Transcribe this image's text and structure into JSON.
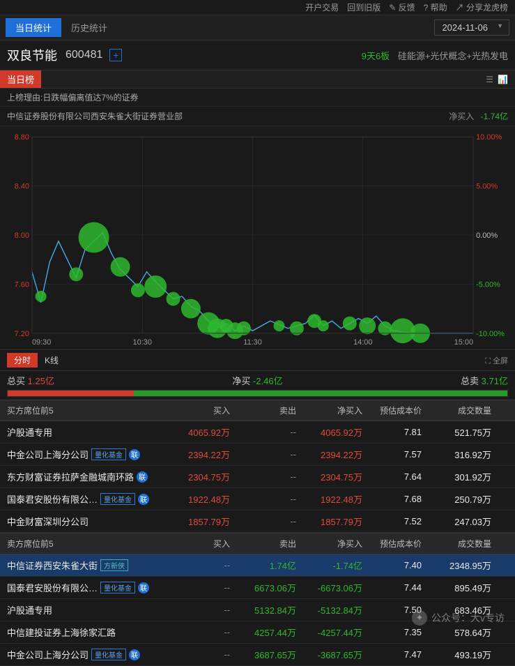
{
  "topLinks": [
    "开户交易",
    "回到旧版",
    "✎ 反馈",
    "? 帮助",
    "↗ 分享龙虎榜"
  ],
  "tabs": {
    "today": "当日统计",
    "history": "历史统计"
  },
  "date": "2024-11-06",
  "stock": {
    "name": "双良节能",
    "code": "600481",
    "plus": "+",
    "days": "9天6板",
    "concepts": "硅能源+光伏概念+光热发电"
  },
  "todayBadge": "当日榜",
  "reason": "上榜理由:日跌幅偏离值达7%的证券",
  "broker": {
    "name": "中信证券股份有限公司西安朱雀大街证券营业部",
    "netLabel": "净买入",
    "netVal": "-1.74亿"
  },
  "chart": {
    "leftTicks": [
      "8.80",
      "8.40",
      "8.00",
      "7.60",
      "7.20"
    ],
    "rightTicks": [
      "10.00%",
      "5.00%",
      "0.00%",
      "-5.00%",
      "-10.00%"
    ],
    "xTicks": [
      "09:30",
      "10:30",
      "11:30",
      "14:00",
      "15:00"
    ],
    "line": [
      [
        0,
        7.7
      ],
      [
        2,
        7.45
      ],
      [
        4,
        7.78
      ],
      [
        6,
        7.95
      ],
      [
        8,
        7.8
      ],
      [
        10,
        7.65
      ],
      [
        12,
        7.88
      ],
      [
        14,
        7.95
      ],
      [
        16,
        8.02
      ],
      [
        18,
        7.85
      ],
      [
        20,
        7.72
      ],
      [
        22,
        7.65
      ],
      [
        24,
        7.58
      ],
      [
        26,
        7.7
      ],
      [
        28,
        7.62
      ],
      [
        30,
        7.55
      ],
      [
        32,
        7.48
      ],
      [
        34,
        7.5
      ],
      [
        36,
        7.42
      ],
      [
        38,
        7.38
      ],
      [
        40,
        7.3
      ],
      [
        42,
        7.24
      ],
      [
        44,
        7.28
      ],
      [
        46,
        7.22
      ],
      [
        48,
        7.26
      ],
      [
        50,
        7.22
      ],
      [
        54,
        7.3
      ],
      [
        58,
        7.24
      ],
      [
        62,
        7.28
      ],
      [
        64,
        7.35
      ],
      [
        66,
        7.26
      ],
      [
        68,
        7.3
      ],
      [
        70,
        7.24
      ],
      [
        74,
        7.32
      ],
      [
        76,
        7.28
      ],
      [
        78,
        7.34
      ],
      [
        80,
        7.26
      ],
      [
        82,
        7.22
      ],
      [
        86,
        7.2
      ],
      [
        90,
        7.2
      ],
      [
        96,
        7.2
      ],
      [
        100,
        7.2
      ]
    ],
    "bubbles": [
      [
        2,
        7.5,
        8
      ],
      [
        10,
        7.68,
        10
      ],
      [
        14,
        7.98,
        22
      ],
      [
        20,
        7.74,
        14
      ],
      [
        24,
        7.55,
        10
      ],
      [
        28,
        7.58,
        16
      ],
      [
        32,
        7.48,
        10
      ],
      [
        36,
        7.4,
        14
      ],
      [
        40,
        7.28,
        16
      ],
      [
        42,
        7.24,
        14
      ],
      [
        44,
        7.26,
        10
      ],
      [
        46,
        7.22,
        12
      ],
      [
        48,
        7.24,
        10
      ],
      [
        56,
        7.26,
        8
      ],
      [
        60,
        7.24,
        10
      ],
      [
        64,
        7.3,
        10
      ],
      [
        66,
        7.26,
        8
      ],
      [
        72,
        7.28,
        10
      ],
      [
        76,
        7.26,
        12
      ],
      [
        80,
        7.24,
        10
      ],
      [
        84,
        7.22,
        18
      ],
      [
        88,
        7.2,
        14
      ]
    ],
    "lineColor": "#4aa8e0",
    "gridColor": "#333333",
    "bubbleColor": "#2eb82e",
    "leftLabelColor": "#d13a2a",
    "rightLabelColorUp": "#d13a2a",
    "rightLabelColorDown": "#2eb82e"
  },
  "chartTabs": {
    "min": "分时",
    "k": "K线",
    "full": "全屏"
  },
  "summary": {
    "buyLabel": "总买 ",
    "buyVal": "1.25亿",
    "netLabel": "净买 ",
    "netVal": "-2.46亿",
    "sellLabel": "总卖 ",
    "sellVal": "3.71亿",
    "buyPct": 25.2,
    "sellPct": 74.8
  },
  "headers": {
    "buySide": "买方席位前5",
    "sellSide": "卖方席位前5",
    "buy": "买入",
    "sell": "卖出",
    "net": "净买入",
    "price": "预估成本价",
    "vol": "成交数量"
  },
  "tags": {
    "quant": "量化基金",
    "fang": "方新侠",
    "lian": "联"
  },
  "buyRows": [
    {
      "name": "沪股通专用",
      "tags": [],
      "buy": "4065.92万",
      "sell": "--",
      "net": "4065.92万",
      "price": "7.81",
      "vol": "521.75万",
      "netClass": "red"
    },
    {
      "name": "中金公司上海分公司",
      "tags": [
        "quant",
        "lian"
      ],
      "buy": "2394.22万",
      "sell": "--",
      "net": "2394.22万",
      "price": "7.57",
      "vol": "316.92万",
      "netClass": "red"
    },
    {
      "name": "东方财富证券拉萨金融城南环路",
      "tags": [
        "lian"
      ],
      "buy": "2304.75万",
      "sell": "--",
      "net": "2304.75万",
      "price": "7.64",
      "vol": "301.92万",
      "netClass": "red"
    },
    {
      "name": "国泰君安股份有限公…",
      "tags": [
        "quant",
        "lian"
      ],
      "buy": "1922.48万",
      "sell": "--",
      "net": "1922.48万",
      "price": "7.68",
      "vol": "250.79万",
      "netClass": "red"
    },
    {
      "name": "中金财富深圳分公司",
      "tags": [],
      "buy": "1857.79万",
      "sell": "--",
      "net": "1857.79万",
      "price": "7.52",
      "vol": "247.03万",
      "netClass": "red"
    }
  ],
  "sellRows": [
    {
      "name": "中信证券西安朱雀大街",
      "tags": [
        "fang"
      ],
      "buy": "--",
      "sell": "1.74亿",
      "net": "-1.74亿",
      "price": "7.40",
      "vol": "2348.95万",
      "netClass": "green",
      "hl": true
    },
    {
      "name": "国泰君安股份有限公…",
      "tags": [
        "quant",
        "lian"
      ],
      "buy": "--",
      "sell": "6673.06万",
      "net": "-6673.06万",
      "price": "7.44",
      "vol": "895.49万",
      "netClass": "green"
    },
    {
      "name": "沪股通专用",
      "tags": [],
      "buy": "--",
      "sell": "5132.84万",
      "net": "-5132.84万",
      "price": "7.50",
      "vol": "683.46万",
      "netClass": "green"
    },
    {
      "name": "中信建投证券上海徐家汇路",
      "tags": [],
      "buy": "--",
      "sell": "4257.44万",
      "net": "-4257.44万",
      "price": "7.35",
      "vol": "578.64万",
      "netClass": "green"
    },
    {
      "name": "中金公司上海分公司",
      "tags": [
        "quant",
        "lian"
      ],
      "buy": "--",
      "sell": "3687.65万",
      "net": "-3687.65万",
      "price": "7.47",
      "vol": "493.19万",
      "netClass": "green"
    }
  ],
  "watermark": {
    "site": "公众号：大v专访"
  }
}
